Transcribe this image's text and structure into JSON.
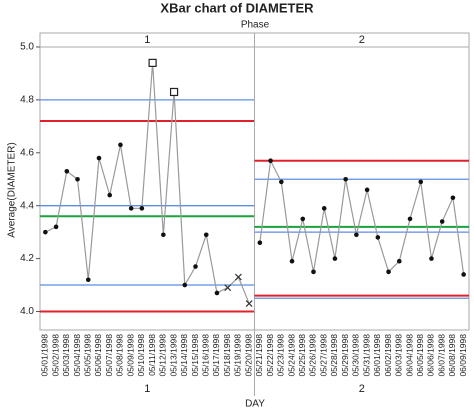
{
  "chart_data": {
    "type": "xbar",
    "title": "XBar chart of DIAMETER",
    "phase_label": "Phase",
    "y_label": "Average(DIAMETER)",
    "x_label": "DAY",
    "ylim": [
      3.93,
      5.0
    ],
    "yticks": [
      {
        "value": 4.0,
        "label": "4.0"
      },
      4.2,
      4.4,
      4.6,
      4.8,
      {
        "value": 5.0,
        "label": "5.0"
      }
    ],
    "line_color": "#9a9a9a",
    "center_color": "#1aa33a",
    "limit_color": "#e0202a",
    "zone_color": "#5b8ee6",
    "phases": [
      {
        "label": "1",
        "categories": [
          "05/01/1998",
          "05/02/1998",
          "05/03/1998",
          "05/04/1998",
          "05/05/1998",
          "05/06/1998",
          "05/07/1998",
          "05/08/1998",
          "05/09/1998",
          "05/10/1998",
          "05/11/1998",
          "05/12/1998",
          "05/13/1998",
          "05/14/1998",
          "05/15/1998",
          "05/16/1998",
          "05/17/1998",
          "05/18/1998",
          "05/19/1998",
          "05/20/1998"
        ],
        "values": [
          4.3,
          4.32,
          4.53,
          4.5,
          4.12,
          4.58,
          4.44,
          4.63,
          4.39,
          4.39,
          4.94,
          4.29,
          4.83,
          4.1,
          4.17,
          4.29,
          4.07,
          4.09,
          4.13,
          4.03
        ],
        "markers": [
          "circle",
          "circle",
          "circle",
          "circle",
          "circle",
          "circle",
          "circle",
          "circle",
          "circle",
          "circle",
          "square",
          "circle",
          "square",
          "circle",
          "circle",
          "circle",
          "circle",
          "x",
          "x",
          "x"
        ],
        "center": 4.36,
        "ucl": 4.72,
        "lcl": 4.0,
        "zones": [
          4.8,
          4.4,
          4.1
        ]
      },
      {
        "label": "2",
        "categories": [
          "05/21/1998",
          "05/22/1998",
          "05/23/1998",
          "05/24/1998",
          "05/25/1998",
          "05/26/1998",
          "05/27/1998",
          "05/28/1998",
          "05/29/1998",
          "05/30/1998",
          "05/31/1998",
          "06/01/1998",
          "06/02/1998",
          "06/03/1998",
          "06/04/1998",
          "06/05/1998",
          "06/06/1998",
          "06/07/1998",
          "06/08/1998",
          "06/09/1998"
        ],
        "values": [
          4.26,
          4.57,
          4.49,
          4.19,
          4.35,
          4.15,
          4.39,
          4.2,
          4.5,
          4.29,
          4.46,
          4.28,
          4.15,
          4.19,
          4.35,
          4.49,
          4.2,
          4.34,
          4.43,
          4.14
        ],
        "markers": [
          "circle",
          "circle",
          "circle",
          "circle",
          "circle",
          "circle",
          "circle",
          "circle",
          "circle",
          "circle",
          "circle",
          "circle",
          "circle",
          "circle",
          "circle",
          "circle",
          "circle",
          "circle",
          "circle",
          "circle"
        ],
        "center": 4.32,
        "ucl": 4.57,
        "lcl": 4.06,
        "zones": [
          4.5,
          4.3,
          4.05
        ]
      }
    ]
  }
}
